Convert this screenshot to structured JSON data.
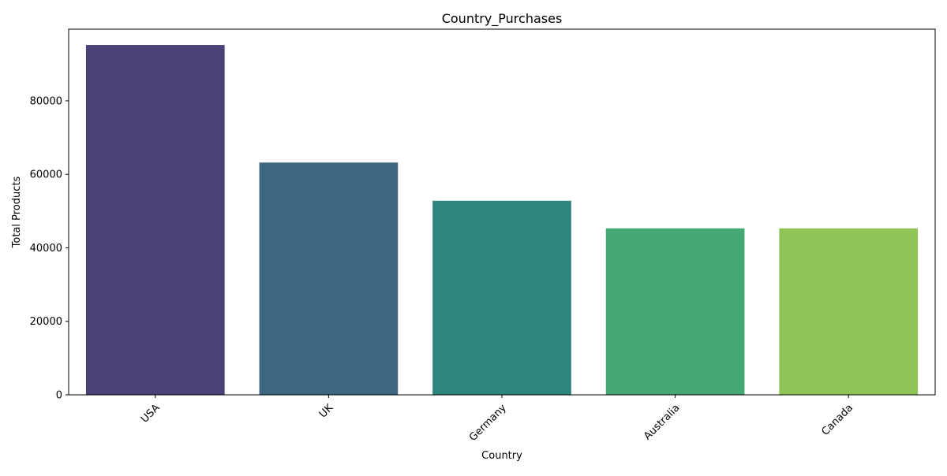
{
  "chart_data": {
    "type": "bar",
    "title": "Country_Purchases",
    "xlabel": "Country",
    "ylabel": "Total Products",
    "categories": [
      "USA",
      "UK",
      "Germany",
      "Australia",
      "Canada"
    ],
    "values": [
      95200,
      63200,
      52800,
      45300,
      45300
    ],
    "ylim": [
      0,
      99500
    ],
    "yticks": [
      0,
      20000,
      40000,
      60000,
      80000
    ],
    "ytick_labels": [
      "0",
      "20000",
      "40000",
      "60000",
      "80000"
    ],
    "grid": false,
    "legend": "none",
    "bar_colors": [
      "#4a4276",
      "#3d6680",
      "#2e847e",
      "#46a874",
      "#8fc556"
    ]
  }
}
